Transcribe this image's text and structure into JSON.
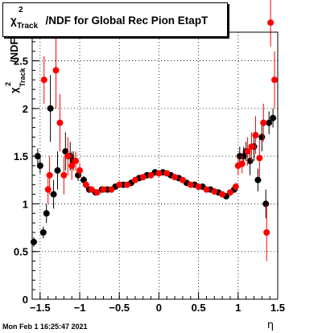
{
  "chart_data": {
    "type": "scatter",
    "title": "χ²Track/NDF for Global Rec Pion EtapT",
    "title_parts": {
      "chi": "χ",
      "sup": "2",
      "sub": "Track",
      "rest": "/NDF for Global Rec Pion EtapT"
    },
    "ylabel_parts": {
      "chi": "χ",
      "sup": "2",
      "sub": "Track",
      "rest": "/NDF"
    },
    "xlabel": "η",
    "xlim": [
      -1.6,
      1.5
    ],
    "ylim": [
      0,
      2.8
    ],
    "xticks": [
      -1.5,
      -1,
      -0.5,
      0,
      0.5,
      1,
      1.5
    ],
    "xtick_labels": [
      "−1.5",
      "−1",
      "−0.5",
      "0",
      "0.5",
      "1",
      "1.5"
    ],
    "yticks": [
      0,
      0.5,
      1,
      1.5,
      2,
      2.5
    ],
    "ytick_labels": [
      "0",
      "0.5",
      "1",
      "1.5",
      "2",
      "2.5"
    ],
    "grid": true,
    "series": [
      {
        "color": "#000000",
        "points": [
          {
            "x": -1.58,
            "y": 0.6,
            "err": 0.05
          },
          {
            "x": -1.53,
            "y": 1.5,
            "err": 0.08
          },
          {
            "x": -1.5,
            "y": 1.4,
            "err": 0.08
          },
          {
            "x": -1.46,
            "y": 0.7,
            "err": 0.06
          },
          {
            "x": -1.42,
            "y": 0.9,
            "err": 0.1
          },
          {
            "x": -1.37,
            "y": 2.0,
            "err": 0.35
          },
          {
            "x": -1.33,
            "y": 1.1,
            "err": 0.15
          },
          {
            "x": -1.28,
            "y": 1.35,
            "err": 0.2
          },
          {
            "x": -1.18,
            "y": 1.55,
            "err": 0.2
          },
          {
            "x": -1.12,
            "y": 1.5,
            "err": 0.15
          },
          {
            "x": -1.08,
            "y": 1.45,
            "err": 0.1
          },
          {
            "x": -1.02,
            "y": 1.3,
            "err": 0.06
          },
          {
            "x": -0.95,
            "y": 1.25,
            "err": 0.04
          },
          {
            "x": -0.88,
            "y": 1.15,
            "err": 0.03
          },
          {
            "x": -0.8,
            "y": 1.12,
            "err": 0.02
          },
          {
            "x": -0.72,
            "y": 1.15,
            "err": 0.02
          },
          {
            "x": -0.65,
            "y": 1.15,
            "err": 0.02
          },
          {
            "x": -0.55,
            "y": 1.18,
            "err": 0.02
          },
          {
            "x": -0.45,
            "y": 1.2,
            "err": 0.02
          },
          {
            "x": -0.35,
            "y": 1.22,
            "err": 0.02
          },
          {
            "x": -0.25,
            "y": 1.27,
            "err": 0.02
          },
          {
            "x": -0.15,
            "y": 1.3,
            "err": 0.02
          },
          {
            "x": -0.05,
            "y": 1.33,
            "err": 0.02
          },
          {
            "x": 0.05,
            "y": 1.33,
            "err": 0.02
          },
          {
            "x": 0.15,
            "y": 1.3,
            "err": 0.02
          },
          {
            "x": 0.25,
            "y": 1.27,
            "err": 0.02
          },
          {
            "x": 0.35,
            "y": 1.22,
            "err": 0.02
          },
          {
            "x": 0.45,
            "y": 1.2,
            "err": 0.02
          },
          {
            "x": 0.55,
            "y": 1.18,
            "err": 0.02
          },
          {
            "x": 0.65,
            "y": 1.15,
            "err": 0.02
          },
          {
            "x": 0.75,
            "y": 1.12,
            "err": 0.02
          },
          {
            "x": 0.85,
            "y": 1.08,
            "err": 0.02
          },
          {
            "x": 0.95,
            "y": 1.15,
            "err": 0.03
          },
          {
            "x": 1.02,
            "y": 1.5,
            "err": 0.1
          },
          {
            "x": 1.07,
            "y": 1.5,
            "err": 0.1
          },
          {
            "x": 1.1,
            "y": 1.55,
            "err": 0.1
          },
          {
            "x": 1.15,
            "y": 1.45,
            "err": 0.15
          },
          {
            "x": 1.2,
            "y": 1.6,
            "err": 0.15
          },
          {
            "x": 1.25,
            "y": 1.25,
            "err": 0.12
          },
          {
            "x": 1.3,
            "y": 1.7,
            "err": 0.15
          },
          {
            "x": 1.35,
            "y": 1.0,
            "err": 0.15
          },
          {
            "x": 1.39,
            "y": 1.85,
            "err": 0.12
          },
          {
            "x": 1.44,
            "y": 1.9,
            "err": 0.1
          }
        ]
      },
      {
        "color": "#ff0000",
        "points": [
          {
            "x": -1.45,
            "y": 2.3,
            "err": 0.25
          },
          {
            "x": -1.4,
            "y": 1.15,
            "err": 0.15
          },
          {
            "x": -1.38,
            "y": 1.3,
            "err": 0.2
          },
          {
            "x": -1.3,
            "y": 2.4,
            "err": 0.4
          },
          {
            "x": -1.25,
            "y": 1.85,
            "err": 0.3
          },
          {
            "x": -1.2,
            "y": 1.3,
            "err": 0.2
          },
          {
            "x": -1.15,
            "y": 1.5,
            "err": 0.2
          },
          {
            "x": -1.1,
            "y": 1.4,
            "err": 0.15
          },
          {
            "x": -1.05,
            "y": 1.45,
            "err": 0.1
          },
          {
            "x": -1.0,
            "y": 1.35,
            "err": 0.08
          },
          {
            "x": -0.92,
            "y": 1.2,
            "err": 0.04
          },
          {
            "x": -0.85,
            "y": 1.15,
            "err": 0.03
          },
          {
            "x": -0.78,
            "y": 1.12,
            "err": 0.02
          },
          {
            "x": -0.7,
            "y": 1.15,
            "err": 0.02
          },
          {
            "x": -0.6,
            "y": 1.15,
            "err": 0.02
          },
          {
            "x": -0.5,
            "y": 1.2,
            "err": 0.02
          },
          {
            "x": -0.4,
            "y": 1.2,
            "err": 0.02
          },
          {
            "x": -0.3,
            "y": 1.25,
            "err": 0.02
          },
          {
            "x": -0.2,
            "y": 1.28,
            "err": 0.02
          },
          {
            "x": -0.1,
            "y": 1.3,
            "err": 0.02
          },
          {
            "x": 0.0,
            "y": 1.32,
            "err": 0.02
          },
          {
            "x": 0.1,
            "y": 1.32,
            "err": 0.02
          },
          {
            "x": 0.2,
            "y": 1.28,
            "err": 0.02
          },
          {
            "x": 0.3,
            "y": 1.25,
            "err": 0.02
          },
          {
            "x": 0.4,
            "y": 1.2,
            "err": 0.02
          },
          {
            "x": 0.5,
            "y": 1.18,
            "err": 0.02
          },
          {
            "x": 0.6,
            "y": 1.15,
            "err": 0.02
          },
          {
            "x": 0.7,
            "y": 1.13,
            "err": 0.02
          },
          {
            "x": 0.8,
            "y": 1.1,
            "err": 0.02
          },
          {
            "x": 0.9,
            "y": 1.12,
            "err": 0.03
          },
          {
            "x": 0.97,
            "y": 1.18,
            "err": 0.04
          },
          {
            "x": 1.0,
            "y": 1.4,
            "err": 0.1
          },
          {
            "x": 1.05,
            "y": 1.42,
            "err": 0.1
          },
          {
            "x": 1.12,
            "y": 1.55,
            "err": 0.15
          },
          {
            "x": 1.17,
            "y": 1.6,
            "err": 0.15
          },
          {
            "x": 1.22,
            "y": 1.72,
            "err": 0.2
          },
          {
            "x": 1.27,
            "y": 1.48,
            "err": 0.2
          },
          {
            "x": 1.32,
            "y": 1.85,
            "err": 0.2
          },
          {
            "x": 1.36,
            "y": 0.7,
            "err": 0.3
          },
          {
            "x": 1.41,
            "y": 2.9,
            "err": 0.25
          },
          {
            "x": 1.46,
            "y": 2.3,
            "err": 0.3
          }
        ]
      }
    ]
  },
  "footer": {
    "timestamp": "Mon Feb  1 16:25:47 2021"
  }
}
